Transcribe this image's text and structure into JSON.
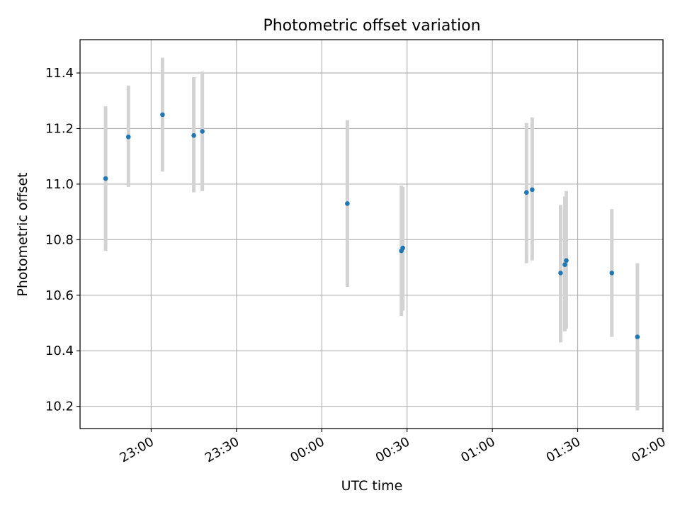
{
  "chart_data": {
    "type": "scatter",
    "title": "Photometric offset variation",
    "xlabel": "UTC time",
    "ylabel": "Photometric offset",
    "x_axis": {
      "kind": "time",
      "range": [
        "22:35",
        "02:00"
      ],
      "ticks": [
        "23:00",
        "23:30",
        "00:00",
        "00:30",
        "01:00",
        "01:30",
        "02:00"
      ]
    },
    "y_axis": {
      "range": [
        10.12,
        11.52
      ],
      "ticks": [
        "10.2",
        "10.4",
        "10.6",
        "10.8",
        "11.0",
        "11.2",
        "11.4"
      ]
    },
    "grid": true,
    "series": [
      {
        "point_color": "#1f77b4",
        "errorbar_color": "#d3d3d3",
        "points": [
          {
            "x": "22:44",
            "y": 11.02,
            "yerr_low": 10.76,
            "yerr_high": 11.28
          },
          {
            "x": "22:52",
            "y": 11.17,
            "yerr_low": 10.99,
            "yerr_high": 11.355
          },
          {
            "x": "23:04",
            "y": 11.25,
            "yerr_low": 11.045,
            "yerr_high": 11.455
          },
          {
            "x": "23:15",
            "y": 11.175,
            "yerr_low": 10.97,
            "yerr_high": 11.385
          },
          {
            "x": "23:18",
            "y": 11.19,
            "yerr_low": 10.975,
            "yerr_high": 11.405
          },
          {
            "x": "00:09",
            "y": 10.93,
            "yerr_low": 10.63,
            "yerr_high": 11.23
          },
          {
            "x": "00:28",
            "y": 10.76,
            "yerr_low": 10.525,
            "yerr_high": 10.995
          },
          {
            "x": "00:28.5",
            "y": 10.77,
            "yerr_low": 10.545,
            "yerr_high": 10.99
          },
          {
            "x": "01:12",
            "y": 10.97,
            "yerr_low": 10.715,
            "yerr_high": 11.22
          },
          {
            "x": "01:14",
            "y": 10.98,
            "yerr_low": 10.725,
            "yerr_high": 11.24
          },
          {
            "x": "01:24",
            "y": 10.68,
            "yerr_low": 10.43,
            "yerr_high": 10.925
          },
          {
            "x": "01:25.5",
            "y": 10.71,
            "yerr_low": 10.47,
            "yerr_high": 10.955
          },
          {
            "x": "01:26",
            "y": 10.725,
            "yerr_low": 10.48,
            "yerr_high": 10.975
          },
          {
            "x": "01:42",
            "y": 10.68,
            "yerr_low": 10.45,
            "yerr_high": 10.91
          },
          {
            "x": "01:51",
            "y": 10.45,
            "yerr_low": 10.185,
            "yerr_high": 10.715
          }
        ]
      }
    ]
  }
}
